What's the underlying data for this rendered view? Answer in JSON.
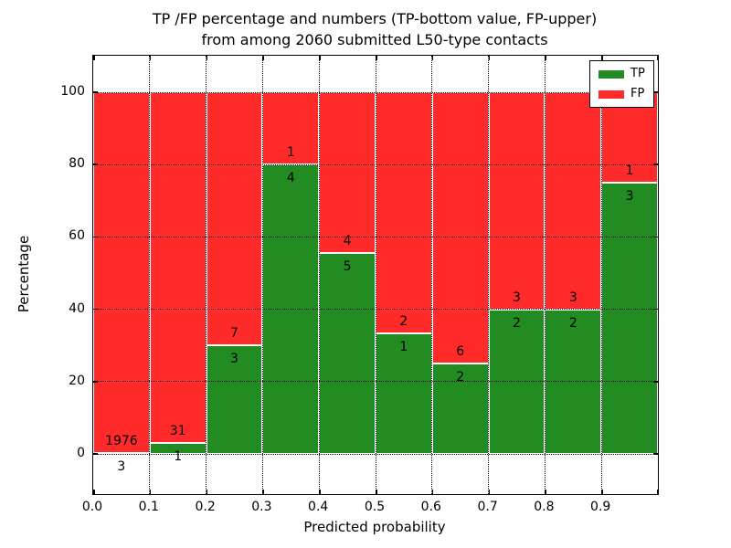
{
  "chart_data": {
    "type": "bar",
    "stacked": true,
    "percentage": true,
    "title_line1": "TP /FP percentage and numbers (TP-bottom value, FP-upper)",
    "title_line2": "from among 2060 submitted L50-type contacts",
    "xlabel": "Predicted probability",
    "ylabel": "Percentage",
    "total_contacts": 2060,
    "xlim": [
      0.0,
      1.0
    ],
    "ylim": [
      -11,
      111
    ],
    "grid": "dotted",
    "x_tick_labels": [
      "0.0",
      "0.1",
      "0.2",
      "0.3",
      "0.4",
      "0.5",
      "0.6",
      "0.7",
      "0.8",
      "0.9"
    ],
    "y_tick_values": [
      0,
      20,
      40,
      60,
      80,
      100
    ],
    "legend": {
      "position": "upper-right",
      "entries": [
        {
          "label": "TP",
          "color": "#228b22"
        },
        {
          "label": "FP",
          "color": "#ff2a2a"
        }
      ]
    },
    "colors": {
      "tp": "#228b22",
      "fp": "#ff2a2a",
      "axis": "#000000",
      "background": "#ffffff"
    },
    "bins": [
      {
        "x_start": 0.0,
        "x_end": 0.1,
        "tp": 3,
        "fp": 1976,
        "tp_pct": 0.15
      },
      {
        "x_start": 0.1,
        "x_end": 0.2,
        "tp": 1,
        "fp": 31,
        "tp_pct": 3.13
      },
      {
        "x_start": 0.2,
        "x_end": 0.3,
        "tp": 3,
        "fp": 7,
        "tp_pct": 30.0
      },
      {
        "x_start": 0.3,
        "x_end": 0.4,
        "tp": 4,
        "fp": 1,
        "tp_pct": 80.0
      },
      {
        "x_start": 0.4,
        "x_end": 0.5,
        "tp": 5,
        "fp": 4,
        "tp_pct": 55.56
      },
      {
        "x_start": 0.5,
        "x_end": 0.6,
        "tp": 1,
        "fp": 2,
        "tp_pct": 33.33
      },
      {
        "x_start": 0.6,
        "x_end": 0.7,
        "tp": 2,
        "fp": 6,
        "tp_pct": 25.0
      },
      {
        "x_start": 0.7,
        "x_end": 0.8,
        "tp": 2,
        "fp": 3,
        "tp_pct": 40.0
      },
      {
        "x_start": 0.8,
        "x_end": 0.9,
        "tp": 2,
        "fp": 3,
        "tp_pct": 40.0
      },
      {
        "x_start": 0.9,
        "x_end": 1.0,
        "tp": 3,
        "fp": 1,
        "tp_pct": 75.0
      }
    ]
  }
}
